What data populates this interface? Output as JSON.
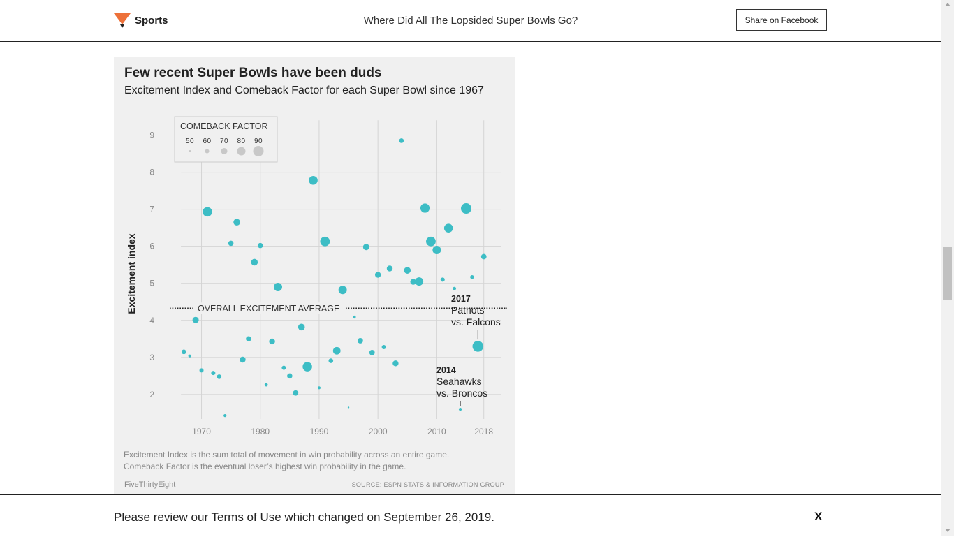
{
  "header": {
    "section": "Sports",
    "article_title": "Where Did All The Lopsided Super Bowls Go?",
    "share_label": "Share on Facebook",
    "logo_color": "#ed713a"
  },
  "figure": {
    "title": "Few recent Super Bowls have been duds",
    "subtitle": "Excitement Index and Comeback Factor for each Super Bowl since 1967",
    "footnote_line1": "Excitement Index is the sum total of movement in win probability across an entire game.",
    "footnote_line2": "Comeback Factor is the eventual loser’s highest win probability in the game.",
    "credit": "FiveThirtyEight",
    "source": "SOURCE: ESPN STATS & INFORMATION GROUP"
  },
  "chart_data": {
    "type": "scatter",
    "title": "Few recent Super Bowls have been duds",
    "subtitle": "Excitement Index and Comeback Factor for each Super Bowl since 1967",
    "xlabel": "",
    "ylabel": "Excitement index",
    "xlim": [
      1964,
      2021
    ],
    "ylim": [
      1.3,
      9.5
    ],
    "x_ticks": [
      1970,
      1980,
      1990,
      2000,
      2010,
      2018
    ],
    "y_ticks": [
      2,
      3,
      4,
      5,
      6,
      7,
      8,
      9
    ],
    "grid": true,
    "point_color": "#3dbdc5",
    "size_legend": {
      "title": "COMEBACK FACTOR",
      "values": [
        50,
        60,
        70,
        80,
        90
      ]
    },
    "average": {
      "value": 4.33,
      "label": "OVERALL EXCITEMENT AVERAGE"
    },
    "annotations": [
      {
        "year_label": "2017",
        "line1": "Patriots",
        "line2": "vs. Falcons",
        "x": 2017,
        "y": 3.3
      },
      {
        "year_label": "2014",
        "line1": "Seahawks",
        "line2": "vs. Broncos",
        "x": 2014,
        "y": 1.6
      }
    ],
    "points": [
      {
        "x": 1967,
        "y": 3.15,
        "c": 62
      },
      {
        "x": 1968,
        "y": 3.04,
        "c": 54
      },
      {
        "x": 1969,
        "y": 4.01,
        "c": 70
      },
      {
        "x": 1970,
        "y": 2.65,
        "c": 60
      },
      {
        "x": 1971,
        "y": 6.93,
        "c": 85
      },
      {
        "x": 1972,
        "y": 2.58,
        "c": 60
      },
      {
        "x": 1973,
        "y": 2.48,
        "c": 62
      },
      {
        "x": 1974,
        "y": 1.43,
        "c": 54
      },
      {
        "x": 1975,
        "y": 6.08,
        "c": 65
      },
      {
        "x": 1976,
        "y": 6.65,
        "c": 72
      },
      {
        "x": 1977,
        "y": 2.94,
        "c": 68
      },
      {
        "x": 1978,
        "y": 3.5,
        "c": 65
      },
      {
        "x": 1979,
        "y": 5.57,
        "c": 72
      },
      {
        "x": 1980,
        "y": 6.02,
        "c": 65
      },
      {
        "x": 1981,
        "y": 2.26,
        "c": 56
      },
      {
        "x": 1982,
        "y": 3.43,
        "c": 68
      },
      {
        "x": 1983,
        "y": 4.9,
        "c": 80
      },
      {
        "x": 1984,
        "y": 2.72,
        "c": 60
      },
      {
        "x": 1985,
        "y": 2.5,
        "c": 65
      },
      {
        "x": 1986,
        "y": 2.04,
        "c": 66
      },
      {
        "x": 1987,
        "y": 3.82,
        "c": 72
      },
      {
        "x": 1988,
        "y": 2.75,
        "c": 85
      },
      {
        "x": 1989,
        "y": 7.78,
        "c": 82
      },
      {
        "x": 1990,
        "y": 2.18,
        "c": 54
      },
      {
        "x": 1991,
        "y": 6.13,
        "c": 86
      },
      {
        "x": 1992,
        "y": 2.91,
        "c": 62
      },
      {
        "x": 1993,
        "y": 3.18,
        "c": 76
      },
      {
        "x": 1994,
        "y": 4.82,
        "c": 80
      },
      {
        "x": 1995,
        "y": 1.65,
        "c": 48
      },
      {
        "x": 1996,
        "y": 4.09,
        "c": 54
      },
      {
        "x": 1997,
        "y": 3.45,
        "c": 66
      },
      {
        "x": 1998,
        "y": 5.98,
        "c": 70
      },
      {
        "x": 1999,
        "y": 3.13,
        "c": 66
      },
      {
        "x": 2000,
        "y": 5.23,
        "c": 68
      },
      {
        "x": 2001,
        "y": 3.28,
        "c": 60
      },
      {
        "x": 2002,
        "y": 5.4,
        "c": 68
      },
      {
        "x": 2003,
        "y": 2.84,
        "c": 68
      },
      {
        "x": 2004,
        "y": 8.85,
        "c": 62
      },
      {
        "x": 2005,
        "y": 5.35,
        "c": 72
      },
      {
        "x": 2006,
        "y": 5.04,
        "c": 68
      },
      {
        "x": 2007,
        "y": 5.05,
        "c": 80
      },
      {
        "x": 2008,
        "y": 7.03,
        "c": 84
      },
      {
        "x": 2009,
        "y": 6.13,
        "c": 86
      },
      {
        "x": 2010,
        "y": 5.9,
        "c": 80
      },
      {
        "x": 2011,
        "y": 5.1,
        "c": 60
      },
      {
        "x": 2012,
        "y": 6.49,
        "c": 82
      },
      {
        "x": 2013,
        "y": 4.86,
        "c": 56
      },
      {
        "x": 2014,
        "y": 1.6,
        "c": 54
      },
      {
        "x": 2015,
        "y": 7.02,
        "c": 90
      },
      {
        "x": 2016,
        "y": 5.17,
        "c": 58
      },
      {
        "x": 2017,
        "y": 3.3,
        "c": 92
      },
      {
        "x": 2018,
        "y": 5.72,
        "c": 66
      }
    ]
  },
  "cookie_bar": {
    "prefix": "Please review our ",
    "link_text": "Terms of Use",
    "suffix": " which changed on September 26, 2019.",
    "close_label": "X"
  }
}
